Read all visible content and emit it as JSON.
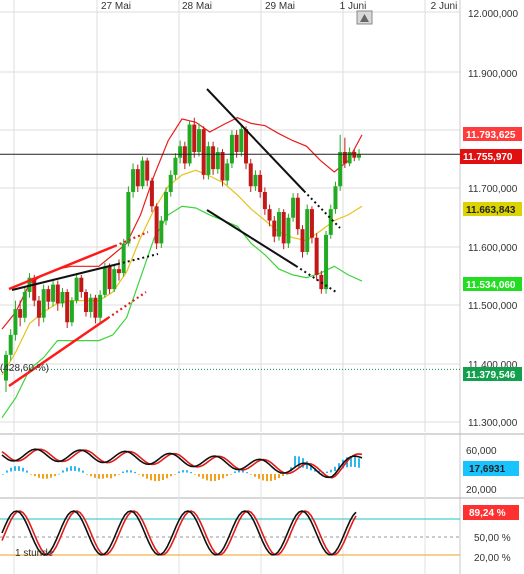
{
  "chart_data": [
    {
      "type": "candlestick",
      "x_ticks": [
        "27 Mai",
        "28 Mai",
        "29 Mai",
        "1 Juni",
        "2 Juni"
      ],
      "y_ticks": [
        "12.000,000",
        "11.900,000",
        "11.800,000",
        "11.700,000",
        "11.600,000",
        "11.500,000",
        "11.400,000",
        "11.300,000"
      ],
      "ylim": [
        11270,
        12005
      ],
      "grid": true,
      "annotation": "(428,60 %)",
      "price_tags": [
        {
          "label": "11.793,625",
          "value": 11793.625,
          "color": "#ff3b3b"
        },
        {
          "label": "11.755,970",
          "value": 11755.97,
          "color": "#e01010"
        },
        {
          "label": "11.663,843",
          "value": 11663.843,
          "color": "#dcd400"
        },
        {
          "label": "11.534,060",
          "value": 11534.06,
          "color": "#22dd22"
        },
        {
          "label": "11.379,546",
          "value": 11379.546,
          "color": "#12a04e"
        }
      ],
      "close_line": 11755.97,
      "support_line": 11379.546,
      "candles": [
        [
          11360,
          11405,
          11340,
          11412
        ],
        [
          11405,
          11440,
          11395,
          11450
        ],
        [
          11440,
          11485,
          11430,
          11500
        ],
        [
          11485,
          11470,
          11455,
          11500
        ],
        [
          11470,
          11515,
          11462,
          11525
        ],
        [
          11515,
          11540,
          11505,
          11548
        ],
        [
          11540,
          11500,
          11490,
          11545
        ],
        [
          11500,
          11470,
          11455,
          11508
        ],
        [
          11470,
          11520,
          11462,
          11528
        ],
        [
          11520,
          11498,
          11485,
          11526
        ],
        [
          11498,
          11528,
          11490,
          11538
        ],
        [
          11528,
          11495,
          11482,
          11535
        ],
        [
          11495,
          11515,
          11488,
          11522
        ],
        [
          11515,
          11462,
          11452,
          11520
        ],
        [
          11462,
          11500,
          11455,
          11506
        ],
        [
          11500,
          11540,
          11495,
          11548
        ],
        [
          11540,
          11515,
          11505,
          11545
        ],
        [
          11515,
          11480,
          11472,
          11520
        ],
        [
          11480,
          11505,
          11470,
          11512
        ],
        [
          11505,
          11470,
          11460,
          11510
        ],
        [
          11470,
          11510,
          11462,
          11518
        ],
        [
          11510,
          11560,
          11505,
          11566
        ],
        [
          11560,
          11520,
          11512,
          11565
        ],
        [
          11520,
          11555,
          11515,
          11562
        ],
        [
          11555,
          11548,
          11535,
          11572
        ],
        [
          11548,
          11600,
          11542,
          11608
        ],
        [
          11600,
          11690,
          11595,
          11700
        ],
        [
          11690,
          11730,
          11680,
          11740
        ],
        [
          11730,
          11700,
          11690,
          11738
        ],
        [
          11700,
          11745,
          11695,
          11752
        ],
        [
          11745,
          11710,
          11700,
          11750
        ],
        [
          11710,
          11665,
          11655,
          11715
        ],
        [
          11665,
          11600,
          11590,
          11670
        ],
        [
          11600,
          11640,
          11592,
          11648
        ],
        [
          11640,
          11690,
          11632,
          11698
        ],
        [
          11690,
          11720,
          11682,
          11728
        ],
        [
          11720,
          11750,
          11712,
          11758
        ],
        [
          11750,
          11770,
          11740,
          11780
        ],
        [
          11770,
          11740,
          11730,
          11778
        ],
        [
          11740,
          11808,
          11735,
          11815
        ],
        [
          11808,
          11760,
          11750,
          11820
        ],
        [
          11760,
          11800,
          11752,
          11810
        ],
        [
          11800,
          11720,
          11712,
          11805
        ],
        [
          11720,
          11770,
          11712,
          11778
        ],
        [
          11770,
          11730,
          11720,
          11778
        ],
        [
          11730,
          11760,
          11722,
          11768
        ],
        [
          11760,
          11710,
          11700,
          11765
        ],
        [
          11710,
          11740,
          11702,
          11748
        ],
        [
          11740,
          11790,
          11732,
          11798
        ],
        [
          11790,
          11760,
          11750,
          11798
        ],
        [
          11760,
          11800,
          11752,
          11808
        ],
        [
          11800,
          11740,
          11730,
          11805
        ],
        [
          11740,
          11700,
          11690,
          11748
        ],
        [
          11700,
          11720,
          11692,
          11728
        ],
        [
          11720,
          11690,
          11680,
          11728
        ],
        [
          11690,
          11660,
          11650,
          11698
        ],
        [
          11660,
          11640,
          11630,
          11668
        ],
        [
          11640,
          11612,
          11602,
          11648
        ],
        [
          11612,
          11655,
          11605,
          11662
        ],
        [
          11655,
          11600,
          11590,
          11660
        ],
        [
          11600,
          11645,
          11592,
          11652
        ],
        [
          11645,
          11680,
          11638,
          11688
        ],
        [
          11680,
          11625,
          11615,
          11688
        ],
        [
          11625,
          11585,
          11575,
          11632
        ],
        [
          11585,
          11660,
          11580,
          11668
        ],
        [
          11660,
          11610,
          11600,
          11665
        ],
        [
          11610,
          11545,
          11535,
          11618
        ],
        [
          11545,
          11520,
          11512,
          11552
        ],
        [
          11520,
          11615,
          11512,
          11622
        ],
        [
          11615,
          11660,
          11608,
          11668
        ],
        [
          11660,
          11700,
          11652,
          11708
        ],
        [
          11700,
          11760,
          11692,
          11790
        ],
        [
          11760,
          11740,
          11732,
          11785
        ],
        [
          11740,
          11760,
          11735,
          11768
        ],
        [
          11760,
          11750,
          11744,
          11764
        ],
        [
          11750,
          11756,
          11745,
          11765
        ]
      ],
      "bands": {
        "upper": [
          11450,
          11480,
          11530,
          11545,
          11555,
          11560,
          11560,
          11560,
          11580,
          11600,
          11650,
          11720,
          11780,
          11818,
          11812,
          11795,
          11808,
          11820,
          11810,
          11806,
          11792,
          11780,
          11770,
          11745,
          11725,
          11745,
          11790
        ],
        "middle": [
          11370,
          11410,
          11460,
          11480,
          11495,
          11500,
          11500,
          11500,
          11515,
          11550,
          11610,
          11660,
          11700,
          11720,
          11728,
          11718,
          11706,
          11685,
          11660,
          11640,
          11620,
          11610,
          11605,
          11622,
          11640,
          11650,
          11665
        ],
        "lower": [
          11295,
          11330,
          11380,
          11400,
          11430,
          11430,
          11430,
          11430,
          11440,
          11470,
          11540,
          11610,
          11650,
          11665,
          11662,
          11650,
          11640,
          11630,
          11600,
          11580,
          11555,
          11545,
          11540,
          11548,
          11560,
          11545,
          11534
        ]
      }
    },
    {
      "type": "histogram",
      "y_ticks": [
        "60,000",
        "20,000"
      ],
      "price_tags": [
        {
          "label": "17,6931",
          "value": 17.6931,
          "color": "#19c3ff"
        }
      ]
    },
    {
      "type": "line",
      "y_ticks": [
        "50,00 %",
        "20,00 %"
      ],
      "price_tags": [
        {
          "label": "89,24 %",
          "value": 89.24,
          "color": "#ff3030"
        }
      ],
      "timeframe_label": "1 stunde"
    }
  ]
}
